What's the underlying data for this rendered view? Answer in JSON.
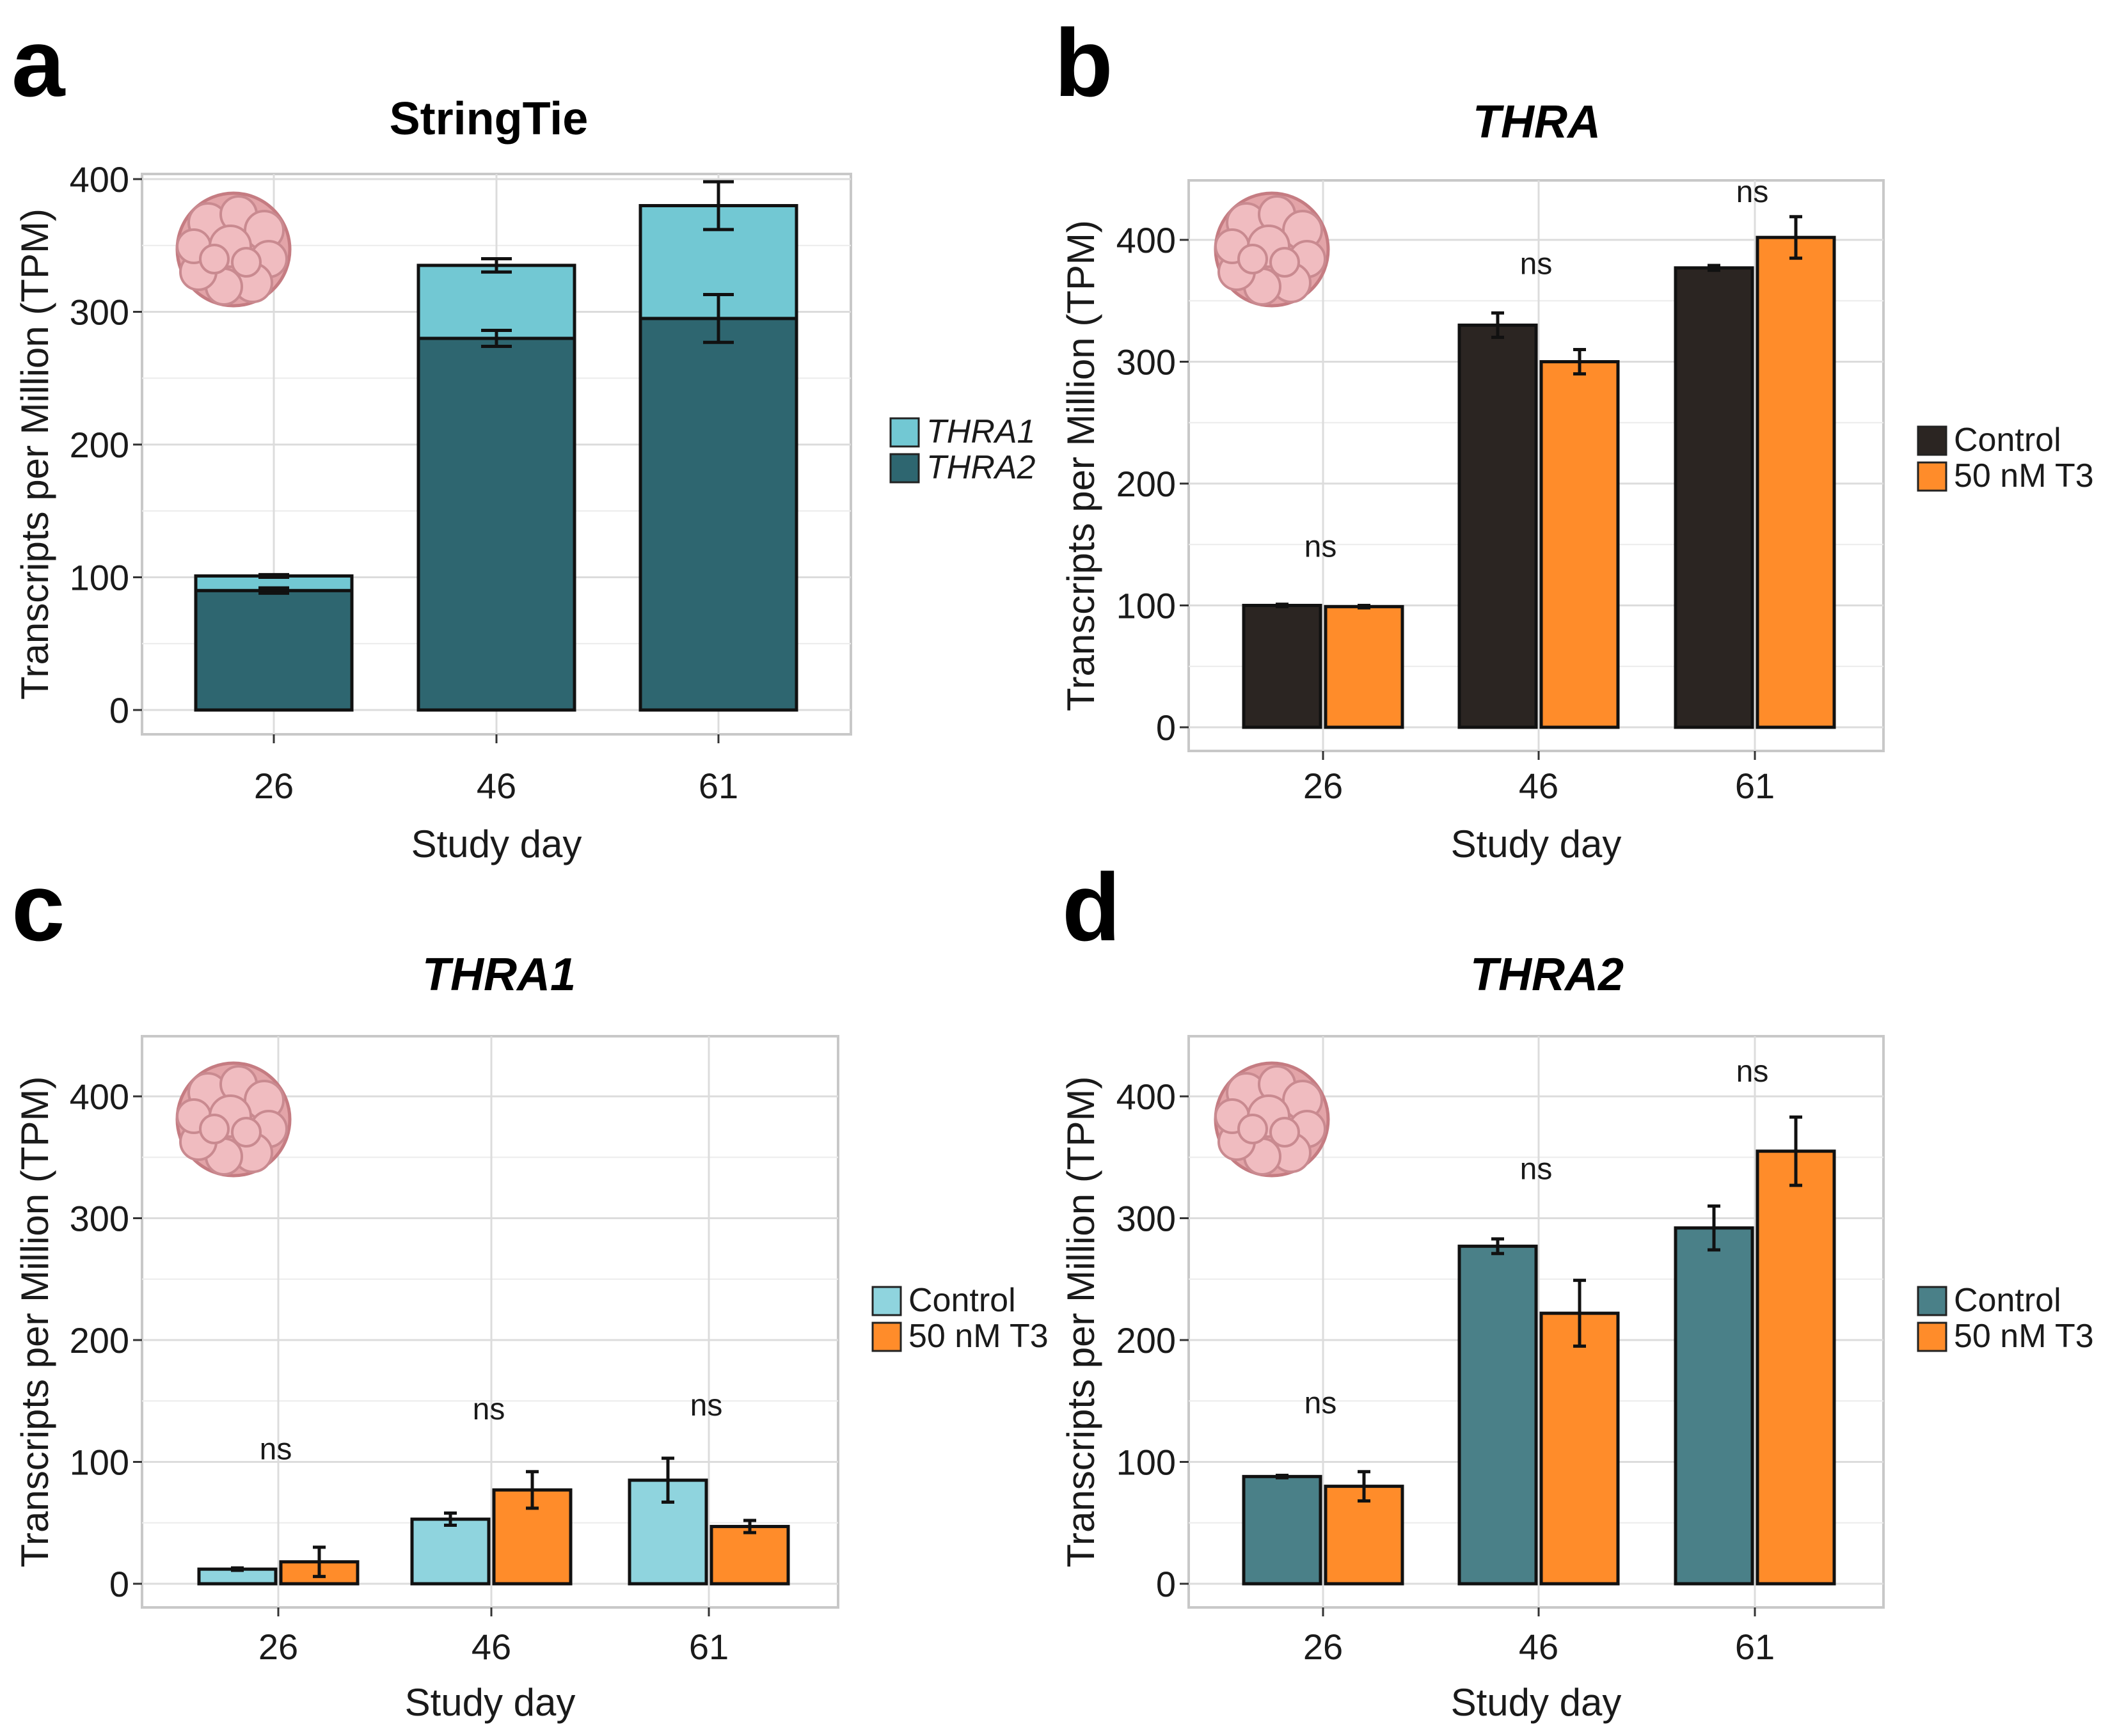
{
  "colors": {
    "thra1": "#72c8d3",
    "thra2": "#2e6670",
    "control_b": "#2b2522",
    "control_c": "#8fd4de",
    "control_d": "#4a8088",
    "t3": "#ff8c2a"
  },
  "chart_data": [
    {
      "id": "a",
      "type": "bar",
      "stacked": true,
      "letter": "a",
      "title": "StringTie",
      "title_italic": false,
      "xlabel": "Study day",
      "ylabel": "Transcripts per Million (TPM)",
      "categories": [
        "26",
        "46",
        "61"
      ],
      "yticks": [
        "0",
        "100",
        "200",
        "300",
        "400"
      ],
      "ylim": [
        0,
        400
      ],
      "legend_italic": true,
      "series": [
        {
          "name": "THRA2",
          "color_key": "thra2",
          "values": [
            90,
            280,
            295
          ],
          "err": [
            2,
            6,
            18
          ]
        },
        {
          "name": "THRA1",
          "color_key": "thra1",
          "values": [
            11,
            55,
            85
          ],
          "err": [
            1,
            5,
            18
          ]
        }
      ],
      "legend": [
        "THRA1",
        "THRA2"
      ],
      "legend_color_keys": [
        "thra1",
        "thra2"
      ],
      "sig_labels": [],
      "icon": "organoid-icon"
    },
    {
      "id": "b",
      "type": "bar",
      "stacked": false,
      "letter": "b",
      "title": "THRA",
      "title_italic": true,
      "xlabel": "Study day",
      "ylabel": "Transcripts per Million (TPM)",
      "categories": [
        "26",
        "46",
        "61"
      ],
      "yticks": [
        "0",
        "100",
        "200",
        "300",
        "400"
      ],
      "ylim": [
        0,
        450
      ],
      "legend_italic": false,
      "series": [
        {
          "name": "Control",
          "color_key": "control_b",
          "values": [
            100,
            330,
            377
          ],
          "err": [
            1,
            10,
            2
          ]
        },
        {
          "name": "50 nM T3",
          "color_key": "t3",
          "values": [
            99,
            300,
            402
          ],
          "err": [
            1,
            10,
            17
          ]
        }
      ],
      "legend": [
        "Control",
        "50 nM T3"
      ],
      "legend_color_keys": [
        "control_b",
        "t3"
      ],
      "sig_labels": [
        {
          "text": "ns",
          "value": 140
        },
        {
          "text": "ns",
          "value": 372
        },
        {
          "text": "ns",
          "value": 431
        }
      ],
      "icon": "organoid-icon"
    },
    {
      "id": "c",
      "type": "bar",
      "stacked": false,
      "letter": "c",
      "title": "THRA1",
      "title_italic": true,
      "xlabel": "Study day",
      "ylabel": "Transcripts per Million (TPM)",
      "categories": [
        "26",
        "46",
        "61"
      ],
      "yticks": [
        "0",
        "100",
        "200",
        "300",
        "400"
      ],
      "ylim": [
        0,
        450
      ],
      "legend_italic": false,
      "series": [
        {
          "name": "Control",
          "color_key": "control_c",
          "values": [
            12,
            53,
            85
          ],
          "err": [
            1,
            5,
            18
          ]
        },
        {
          "name": "50 nM T3",
          "color_key": "t3",
          "values": [
            18,
            77,
            47
          ],
          "err": [
            12,
            15,
            5
          ]
        }
      ],
      "legend": [
        "Control",
        "50 nM T3"
      ],
      "legend_color_keys": [
        "control_c",
        "t3"
      ],
      "sig_labels": [
        {
          "text": "ns",
          "value": 102
        },
        {
          "text": "ns",
          "value": 135
        },
        {
          "text": "ns",
          "value": 138
        }
      ],
      "icon": "organoid-icon"
    },
    {
      "id": "d",
      "type": "bar",
      "stacked": false,
      "letter": "d",
      "title": "THRA2",
      "title_italic": true,
      "xlabel": "Study day",
      "ylabel": "Transcripts per Million (TPM)",
      "categories": [
        "26",
        "46",
        "61"
      ],
      "yticks": [
        "0",
        "100",
        "200",
        "300",
        "400"
      ],
      "ylim": [
        0,
        450
      ],
      "legend_italic": false,
      "series": [
        {
          "name": "Control",
          "color_key": "control_d",
          "values": [
            88,
            277,
            292
          ],
          "err": [
            1,
            6,
            18
          ]
        },
        {
          "name": "50 nM T3",
          "color_key": "t3",
          "values": [
            80,
            222,
            355
          ],
          "err": [
            12,
            27,
            28
          ]
        }
      ],
      "legend": [
        "Control",
        "50 nM T3"
      ],
      "legend_color_keys": [
        "control_d",
        "t3"
      ],
      "sig_labels": [
        {
          "text": "ns",
          "value": 140
        },
        {
          "text": "ns",
          "value": 332
        },
        {
          "text": "ns",
          "value": 412
        }
      ],
      "icon": "organoid-icon"
    }
  ]
}
